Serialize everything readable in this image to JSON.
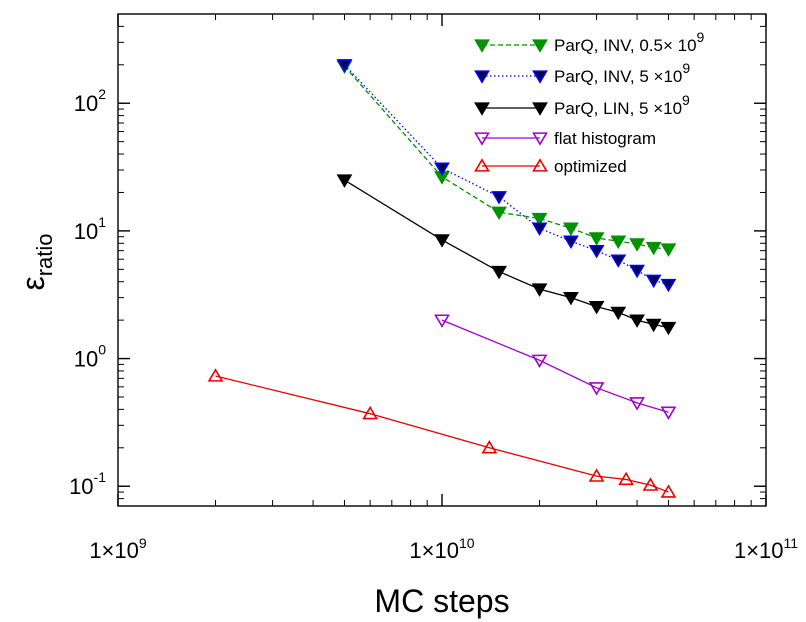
{
  "chart_data": {
    "type": "line",
    "xscale": "log",
    "yscale": "log",
    "xlim": [
      1000000000.0,
      100000000000.0
    ],
    "ylim": [
      0.07,
      500
    ],
    "xlabel": "MC steps",
    "ylabel": {
      "base": "ε",
      "sub": "ratio"
    },
    "xticks": [
      {
        "value": 1000000000.0,
        "mantissa": "1×10",
        "exp": "9"
      },
      {
        "value": 10000000000.0,
        "mantissa": "1×10",
        "exp": "10"
      },
      {
        "value": 100000000000.0,
        "mantissa": "1×10",
        "exp": "11"
      }
    ],
    "yticks": [
      {
        "value": 0.1,
        "mantissa": "10",
        "exp": "-1"
      },
      {
        "value": 1,
        "mantissa": "10",
        "exp": "0"
      },
      {
        "value": 10,
        "mantissa": "10",
        "exp": "1"
      },
      {
        "value": 100,
        "mantissa": "10",
        "exp": "2"
      }
    ],
    "legend_position": "top-right",
    "series": [
      {
        "name": "ParQ, INV, 0.5× 10",
        "name_exp": "9",
        "key": "parq-inv-05",
        "color": "#009300",
        "line_style": "dashed",
        "marker": "triangle-down",
        "marker_fill": "#009300",
        "marker_stroke": "#009300",
        "x": [
          5000000000.0,
          10000000000.0,
          15000000000.0,
          20000000000.0,
          25000000000.0,
          30000000000.0,
          35000000000.0,
          40000000000.0,
          45000000000.0,
          50000000000.0
        ],
        "y": [
          195,
          26.5,
          14,
          12.5,
          10.5,
          8.8,
          8.3,
          7.9,
          7.4,
          7.2
        ]
      },
      {
        "name": "ParQ, INV, 5 ×10",
        "name_exp": "9",
        "key": "parq-inv-5",
        "color": "#0000ff",
        "line_style": "dotted",
        "marker": "triangle-down",
        "marker_fill": "#000055",
        "marker_stroke": "#0000ff",
        "x": [
          5000000000.0,
          10000000000.0,
          15000000000.0,
          20000000000.0,
          25000000000.0,
          30000000000.0,
          35000000000.0,
          40000000000.0,
          45000000000.0,
          50000000000.0
        ],
        "y": [
          200,
          31,
          18.5,
          10.5,
          8.3,
          7,
          5.9,
          4.9,
          4.1,
          3.8
        ]
      },
      {
        "name": "ParQ, LIN, 5 ×10",
        "name_exp": "9",
        "key": "parq-lin-5",
        "color": "#000000",
        "line_style": "solid",
        "marker": "triangle-down",
        "marker_fill": "#000000",
        "marker_stroke": "#000000",
        "x": [
          5000000000.0,
          10000000000.0,
          15000000000.0,
          20000000000.0,
          25000000000.0,
          30000000000.0,
          35000000000.0,
          40000000000.0,
          45000000000.0,
          50000000000.0
        ],
        "y": [
          25,
          8.5,
          4.8,
          3.5,
          3,
          2.55,
          2.3,
          2.0,
          1.85,
          1.75
        ]
      },
      {
        "name": "flat histogram",
        "name_exp": "",
        "key": "flat-histogram",
        "color": "#a000d0",
        "line_style": "solid",
        "marker": "triangle-down-open",
        "marker_fill": "none",
        "marker_stroke": "#a000d0",
        "x": [
          10000000000.0,
          20000000000.0,
          30000000000.0,
          40000000000.0,
          50000000000.0
        ],
        "y": [
          2.0,
          0.97,
          0.59,
          0.45,
          0.38
        ]
      },
      {
        "name": "optimized",
        "name_exp": "",
        "key": "optimized",
        "color": "#ee0000",
        "line_style": "solid",
        "marker": "triangle-up-open",
        "marker_fill": "none",
        "marker_stroke": "#ee0000",
        "x": [
          2000000000.0,
          6000000000.0,
          14000000000.0,
          30000000000.0,
          37000000000.0,
          44000000000.0,
          50000000000.0
        ],
        "y": [
          0.73,
          0.37,
          0.2,
          0.12,
          0.113,
          0.102,
          0.09
        ]
      }
    ]
  }
}
